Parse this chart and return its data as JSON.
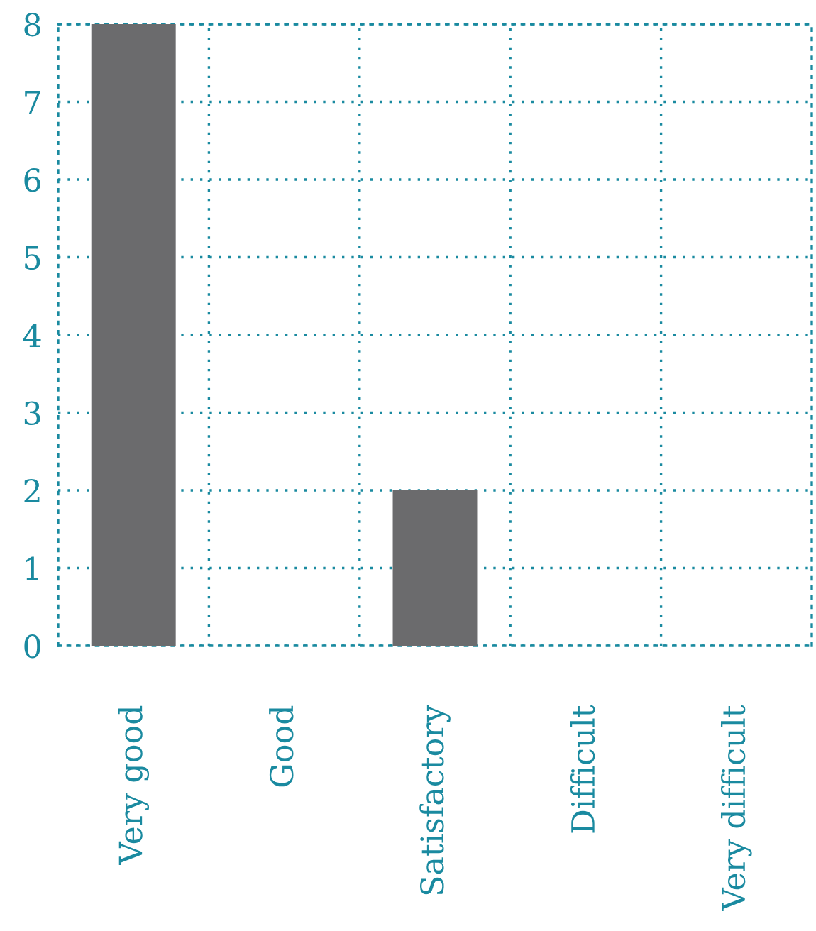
{
  "chart_data": {
    "type": "bar",
    "categories": [
      "Very good",
      "Good",
      "Satisfactory",
      "Difficult",
      "Very difficult"
    ],
    "values": [
      8,
      0,
      2,
      0,
      0
    ],
    "color": "#6b6b6d",
    "ylim": [
      0,
      8
    ],
    "yticks": [
      0,
      1,
      2,
      3,
      4,
      5,
      6,
      7,
      8
    ],
    "grid": true,
    "legend": false
  }
}
